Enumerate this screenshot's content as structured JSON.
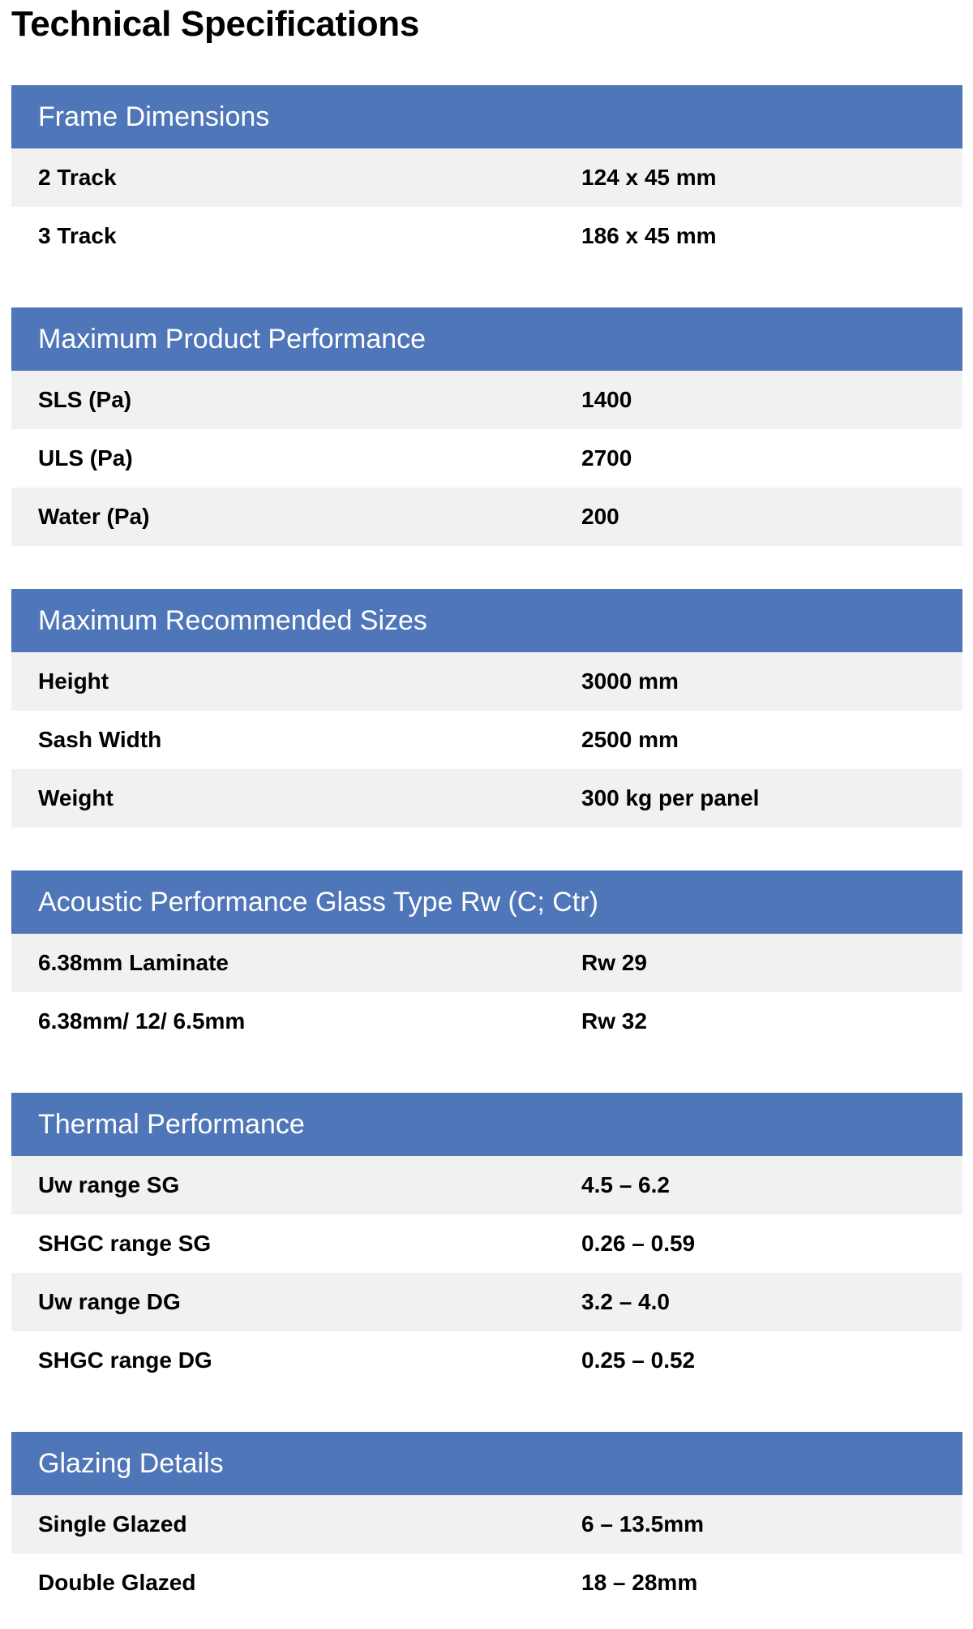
{
  "title": "Technical Specifications",
  "colors": {
    "header_bg": "#4f76b8",
    "stripe_bg": "#f1f1f1"
  },
  "sections": [
    {
      "heading": "Frame Dimensions",
      "rows": [
        {
          "label": "2 Track",
          "value": "124 x 45 mm"
        },
        {
          "label": "3 Track",
          "value": "186 x 45 mm"
        }
      ]
    },
    {
      "heading": "Maximum Product Performance",
      "rows": [
        {
          "label": "SLS (Pa)",
          "value": "1400"
        },
        {
          "label": "ULS (Pa)",
          "value": "2700"
        },
        {
          "label": "Water (Pa)",
          "value": "200"
        }
      ]
    },
    {
      "heading": "Maximum Recommended Sizes",
      "rows": [
        {
          "label": "Height",
          "value": "3000 mm"
        },
        {
          "label": "Sash Width",
          "value": "2500 mm"
        },
        {
          "label": "Weight",
          "value": "300 kg per panel"
        }
      ]
    },
    {
      "heading": "Acoustic Performance Glass Type  Rw (C; Ctr)",
      "rows": [
        {
          "label": "6.38mm Laminate",
          "value": "Rw 29"
        },
        {
          "label": "6.38mm/ 12/ 6.5mm",
          "value": "Rw 32"
        }
      ]
    },
    {
      "heading": "Thermal Performance",
      "rows": [
        {
          "label": "Uw range SG",
          "value": "4.5 – 6.2"
        },
        {
          "label": "SHGC range SG",
          "value": "0.26 – 0.59"
        },
        {
          "label": "Uw range DG",
          "value": "3.2 – 4.0"
        },
        {
          "label": "SHGC range DG",
          "value": "0.25 – 0.52"
        }
      ]
    },
    {
      "heading": "Glazing Details",
      "rows": [
        {
          "label": "Single Glazed",
          "value": "6 – 13.5mm"
        },
        {
          "label": "Double Glazed",
          "value": "18 – 28mm"
        }
      ]
    }
  ]
}
